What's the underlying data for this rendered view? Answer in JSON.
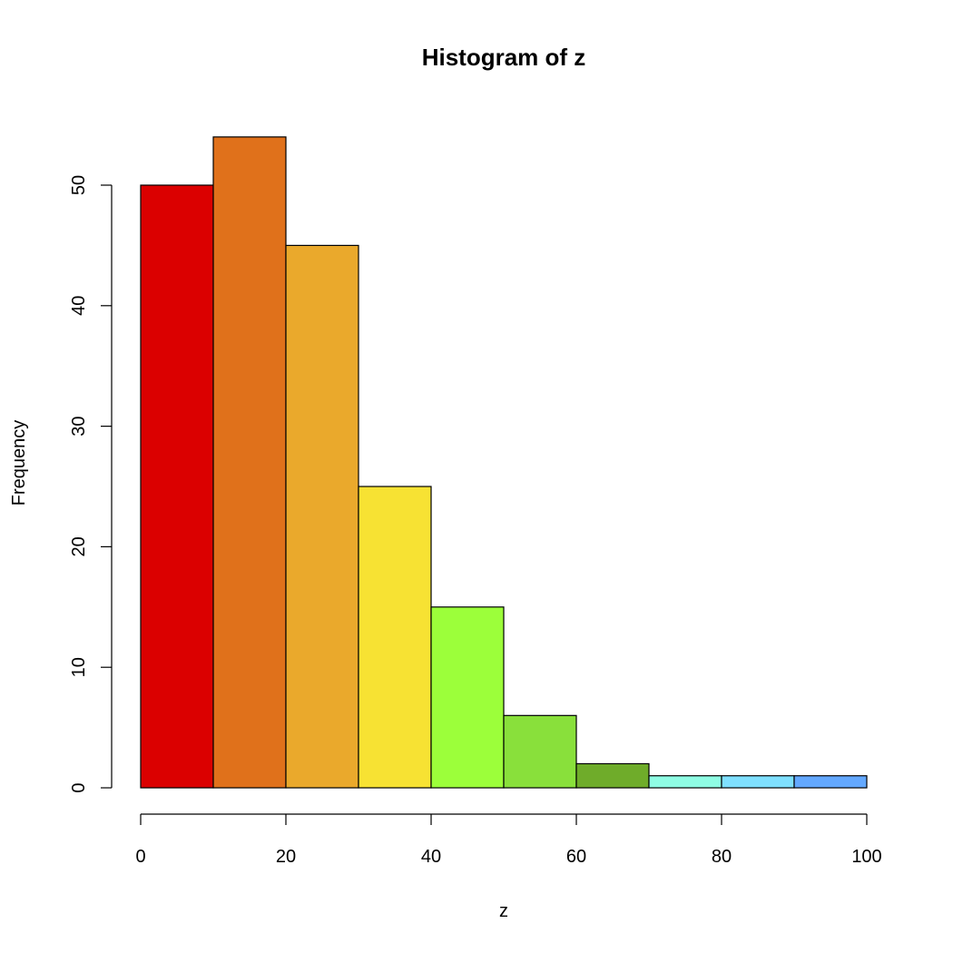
{
  "chart_data": {
    "type": "bar",
    "title": "Histogram of z",
    "xlabel": "z",
    "ylabel": "Frequency",
    "bins": [
      {
        "x0": 0,
        "x1": 10,
        "count": 50,
        "color": "#db0000"
      },
      {
        "x0": 10,
        "x1": 20,
        "count": 54,
        "color": "#e0711b"
      },
      {
        "x0": 20,
        "x1": 30,
        "count": 45,
        "color": "#eaa92c"
      },
      {
        "x0": 30,
        "x1": 40,
        "count": 25,
        "color": "#f7e233"
      },
      {
        "x0": 40,
        "x1": 50,
        "count": 15,
        "color": "#9cff3a"
      },
      {
        "x0": 50,
        "x1": 60,
        "count": 6,
        "color": "#89e03b"
      },
      {
        "x0": 60,
        "x1": 70,
        "count": 2,
        "color": "#6fac2a"
      },
      {
        "x0": 70,
        "x1": 80,
        "count": 1,
        "color": "#8ffde4"
      },
      {
        "x0": 80,
        "x1": 90,
        "count": 1,
        "color": "#7fe0ff"
      },
      {
        "x0": 90,
        "x1": 100,
        "count": 1,
        "color": "#63a8ff"
      }
    ],
    "xlim": [
      0,
      100
    ],
    "ylim": [
      0,
      50
    ],
    "x_ticks": [
      0,
      20,
      40,
      60,
      80,
      100
    ],
    "y_ticks": [
      0,
      10,
      20,
      30,
      40,
      50
    ],
    "grid": false,
    "legend": "none"
  }
}
